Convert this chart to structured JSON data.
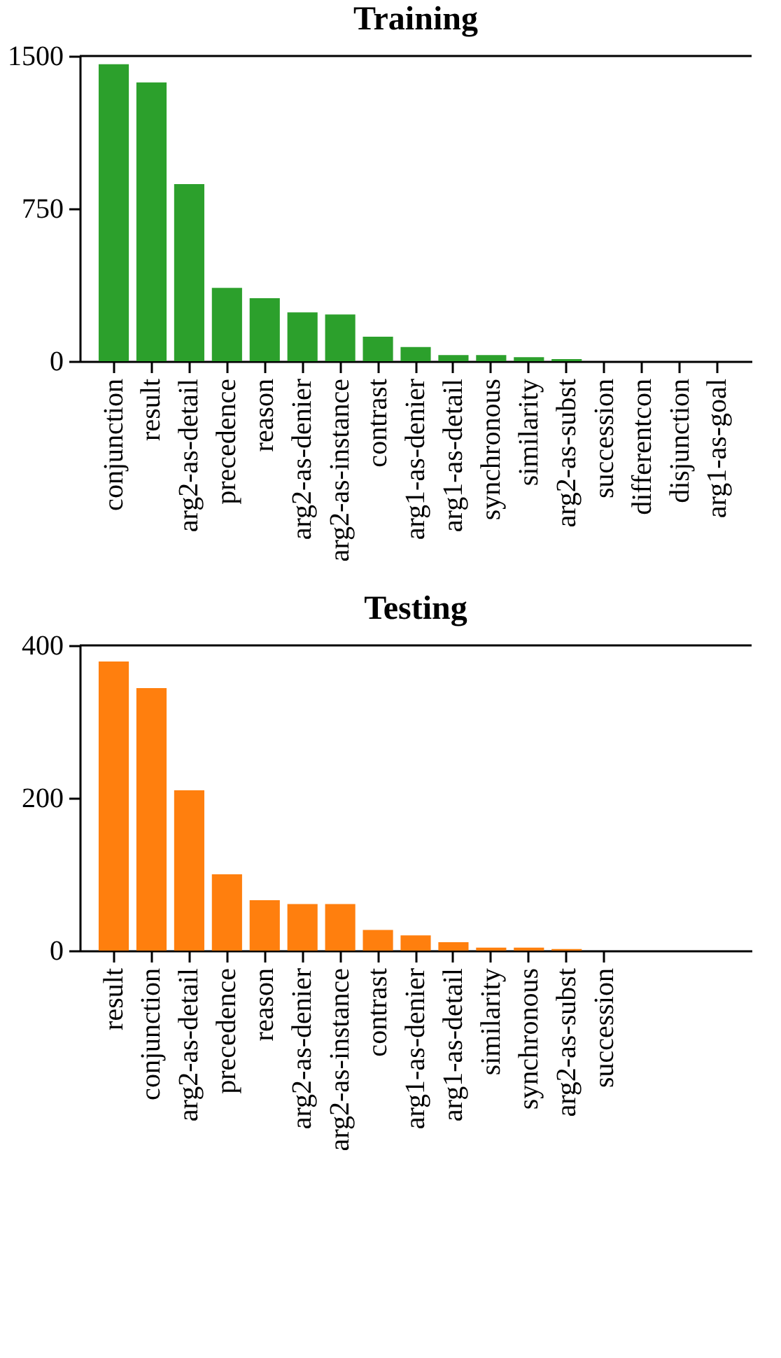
{
  "chart_data": [
    {
      "type": "bar",
      "title": "Training",
      "categories": [
        "conjunction",
        "result",
        "arg2-as-detail",
        "precedence",
        "reason",
        "arg2-as-denier",
        "arg2-as-instance",
        "contrast",
        "arg1-as-denier",
        "arg1-as-detail",
        "synchronous",
        "similarity",
        "arg2-as-subst",
        "succession",
        "differentcon",
        "disjunction",
        "arg1-as-goal"
      ],
      "values": [
        1460,
        1370,
        870,
        360,
        310,
        240,
        230,
        120,
        70,
        30,
        30,
        20,
        10,
        0,
        0,
        0,
        0
      ],
      "color": "#2ca02c",
      "ylim": [
        0,
        1500
      ],
      "yticks": [
        0,
        750,
        1500
      ],
      "grid": false
    },
    {
      "type": "bar",
      "title": "Testing",
      "categories": [
        "result",
        "conjunction",
        "arg2-as-detail",
        "precedence",
        "reason",
        "arg2-as-denier",
        "arg2-as-instance",
        "contrast",
        "arg1-as-denier",
        "arg1-as-detail",
        "similarity",
        "synchronous",
        "arg2-as-subst",
        "succession"
      ],
      "values": [
        379,
        344,
        210,
        100,
        66,
        61,
        61,
        27,
        20,
        11,
        4,
        4,
        2,
        0
      ],
      "color": "#ff7f0e",
      "ylim": [
        0,
        400
      ],
      "yticks": [
        0,
        200,
        400
      ],
      "grid": false
    }
  ]
}
